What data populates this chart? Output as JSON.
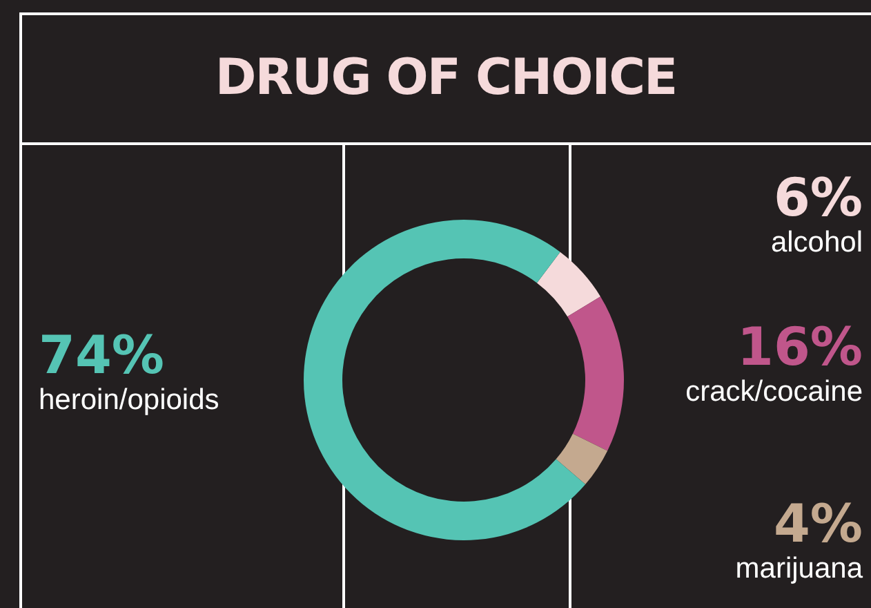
{
  "chart_data": {
    "type": "donut",
    "title": "DRUG OF CHOICE",
    "categories": [
      "alcohol",
      "crack/cocaine",
      "marijuana",
      "heroin/opioids"
    ],
    "values": [
      6,
      16,
      4,
      74
    ],
    "colors": [
      "#f5dadb",
      "#c0568b",
      "#c4a98f",
      "#55c4b4"
    ],
    "value_labels": [
      "6%",
      "16%",
      "4%",
      "74%"
    ]
  }
}
